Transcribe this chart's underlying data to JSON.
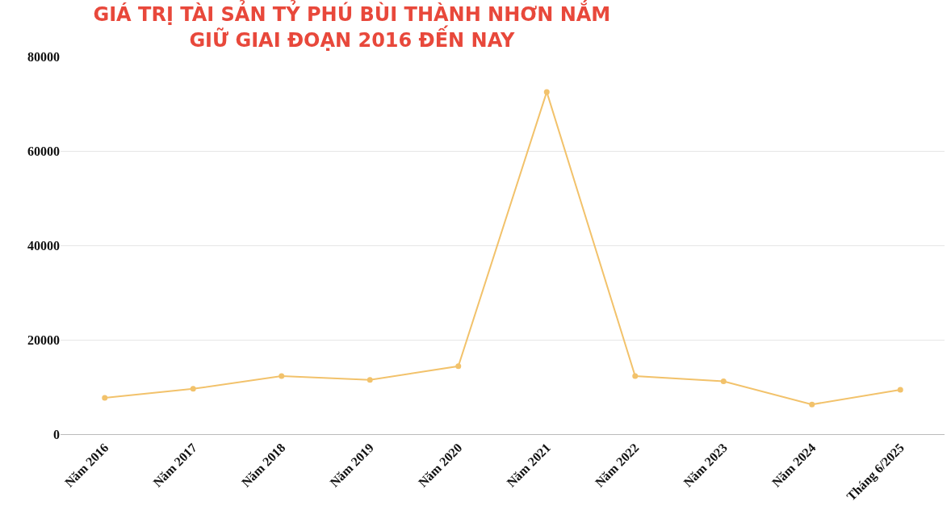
{
  "chart_data": {
    "type": "line",
    "title": "GIÁ TRỊ TÀI SẢN TỶ PHÚ BÙI THÀNH NHƠN NẮM\nGIỮ GIAI ĐOẠN 2016 ĐẾN NAY",
    "categories": [
      "Năm 2016",
      "Năm 2017",
      "Năm 2018",
      "Năm 2019",
      "Năm 2020",
      "Năm 2021",
      "Năm 2022",
      "Năm 2023",
      "Năm 2024",
      "Tháng 6/2025"
    ],
    "series": [
      {
        "color": "#f2c26b",
        "values": [
          7700,
          9600,
          12300,
          11500,
          14400,
          72500,
          12300,
          11200,
          6300,
          9400
        ]
      }
    ],
    "ylim": [
      0,
      80000
    ],
    "yticks": [
      0,
      20000,
      40000,
      60000,
      80000
    ],
    "grid": "y",
    "marker": "circle",
    "line_style": "solid"
  }
}
